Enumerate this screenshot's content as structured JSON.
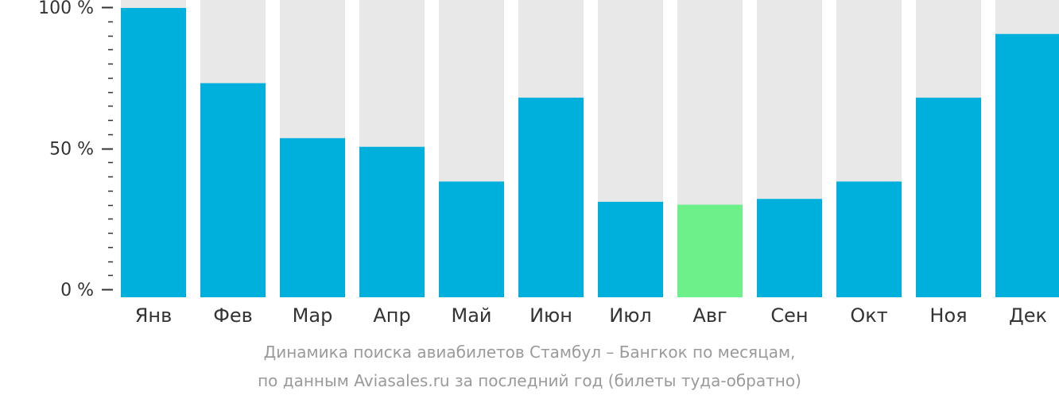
{
  "chart_data": {
    "type": "bar",
    "categories": [
      "Янв",
      "Фев",
      "Мар",
      "Апр",
      "Май",
      "Июн",
      "Июл",
      "Авг",
      "Сен",
      "Окт",
      "Ноя",
      "Дек"
    ],
    "values": [
      100,
      74,
      55,
      52,
      40,
      69,
      33,
      32,
      34,
      40,
      69,
      91
    ],
    "highlight_index": 7,
    "ylim": [
      0,
      100
    ],
    "yticks": [
      {
        "value": 100,
        "label": "100 %"
      },
      {
        "value": 50,
        "label": "50 %"
      },
      {
        "value": 0,
        "label": "0 %"
      }
    ],
    "minor_tick_step": 10,
    "grid": false,
    "colors": {
      "bar": "#00b0dc",
      "bar_highlight": "#6df08a",
      "bar_background": "#e8e8e9",
      "axis": "#333333",
      "tick_label": "#333333",
      "category_label": "#333333"
    }
  },
  "caption": {
    "line1": "Динамика поиска авиабилетов Стамбул – Бангкок по месяцам,",
    "line2": "по данным Aviasales.ru за последний год (билеты туда-обратно)"
  }
}
